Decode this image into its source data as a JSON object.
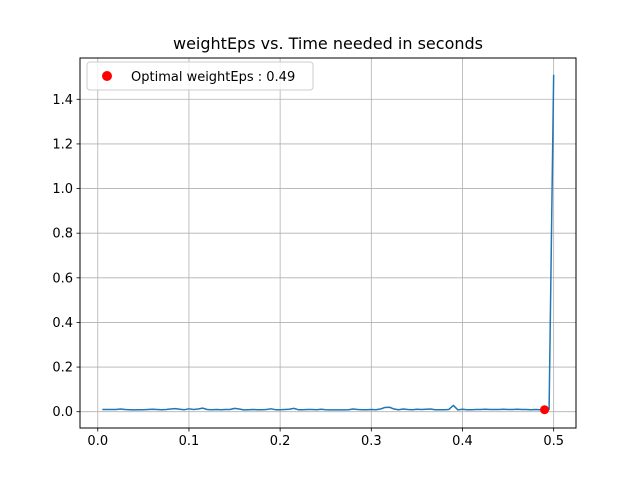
{
  "chart_data": {
    "type": "line",
    "title": "weightEps vs. Time needed in seconds",
    "xlabel": "",
    "ylabel": "",
    "xlim": [
      -0.0195,
      0.5245
    ],
    "ylim": [
      -0.073,
      1.585
    ],
    "xticks": [
      0.0,
      0.1,
      0.2,
      0.3,
      0.4,
      0.5
    ],
    "xtick_labels": [
      "0.0",
      "0.1",
      "0.2",
      "0.3",
      "0.4",
      "0.5"
    ],
    "yticks": [
      0.0,
      0.2,
      0.4,
      0.6,
      0.8,
      1.0,
      1.2,
      1.4
    ],
    "ytick_labels": [
      "0.0",
      "0.2",
      "0.4",
      "0.6",
      "0.8",
      "1.0",
      "1.2",
      "1.4"
    ],
    "grid": true,
    "legend": {
      "placement": "top-left",
      "entries": [
        "Optimal weightEps : 0.49"
      ]
    },
    "series": [
      {
        "color": "#1f77b4",
        "x": [
          0.005,
          0.01,
          0.015,
          0.02,
          0.025,
          0.03,
          0.035,
          0.04,
          0.045,
          0.05,
          0.055,
          0.06,
          0.065,
          0.07,
          0.075,
          0.08,
          0.085,
          0.09,
          0.095,
          0.1,
          0.105,
          0.11,
          0.115,
          0.12,
          0.125,
          0.13,
          0.135,
          0.14,
          0.145,
          0.15,
          0.155,
          0.16,
          0.165,
          0.17,
          0.175,
          0.18,
          0.185,
          0.19,
          0.195,
          0.2,
          0.205,
          0.21,
          0.215,
          0.22,
          0.225,
          0.23,
          0.235,
          0.24,
          0.245,
          0.25,
          0.255,
          0.26,
          0.265,
          0.27,
          0.275,
          0.28,
          0.285,
          0.29,
          0.295,
          0.3,
          0.305,
          0.31,
          0.315,
          0.32,
          0.325,
          0.33,
          0.335,
          0.34,
          0.345,
          0.35,
          0.355,
          0.36,
          0.365,
          0.37,
          0.375,
          0.38,
          0.385,
          0.39,
          0.395,
          0.4,
          0.405,
          0.41,
          0.415,
          0.42,
          0.425,
          0.43,
          0.435,
          0.44,
          0.445,
          0.45,
          0.455,
          0.46,
          0.465,
          0.47,
          0.475,
          0.48,
          0.485,
          0.49,
          0.495,
          0.5
        ],
        "y": [
          0.01,
          0.01,
          0.01,
          0.01,
          0.012,
          0.01,
          0.009,
          0.008,
          0.009,
          0.009,
          0.01,
          0.011,
          0.01,
          0.009,
          0.01,
          0.012,
          0.014,
          0.011,
          0.009,
          0.013,
          0.01,
          0.012,
          0.016,
          0.01,
          0.009,
          0.01,
          0.009,
          0.01,
          0.01,
          0.015,
          0.012,
          0.008,
          0.009,
          0.01,
          0.009,
          0.009,
          0.01,
          0.013,
          0.009,
          0.009,
          0.01,
          0.011,
          0.015,
          0.009,
          0.009,
          0.01,
          0.01,
          0.009,
          0.011,
          0.009,
          0.008,
          0.008,
          0.008,
          0.008,
          0.009,
          0.012,
          0.01,
          0.009,
          0.009,
          0.01,
          0.009,
          0.012,
          0.019,
          0.02,
          0.012,
          0.009,
          0.012,
          0.01,
          0.009,
          0.011,
          0.01,
          0.011,
          0.012,
          0.009,
          0.009,
          0.009,
          0.01,
          0.028,
          0.008,
          0.011,
          0.009,
          0.009,
          0.01,
          0.01,
          0.011,
          0.01,
          0.01,
          0.01,
          0.011,
          0.01,
          0.01,
          0.011,
          0.01,
          0.01,
          0.009,
          0.01,
          0.009,
          0.009,
          0.01,
          1.51
        ]
      }
    ],
    "highlight_point": {
      "x": 0.49,
      "y": 0.009,
      "color": "#ff0000",
      "label": "Optimal weightEps : 0.49"
    }
  }
}
